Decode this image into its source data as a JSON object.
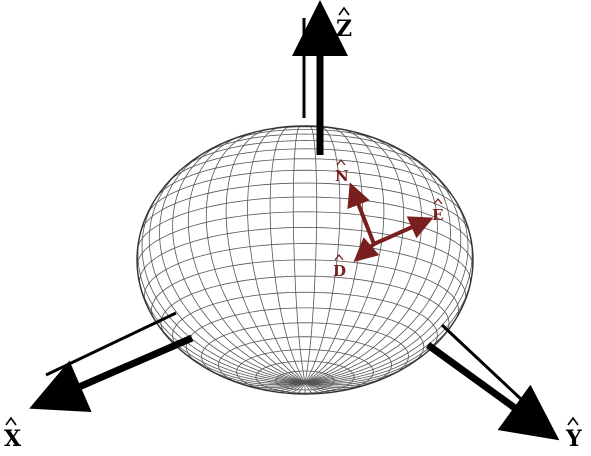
{
  "axes": {
    "x": {
      "label": "X"
    },
    "y": {
      "label": "Y"
    },
    "z": {
      "label": "Z"
    }
  },
  "local_frame": {
    "north": {
      "label": "N"
    },
    "east": {
      "label": "E"
    },
    "down": {
      "label": "D"
    }
  },
  "colors": {
    "axis": "#000000",
    "local_frame": "#7a1f1f",
    "globe_line": "#555555",
    "background": "#ffffff"
  }
}
